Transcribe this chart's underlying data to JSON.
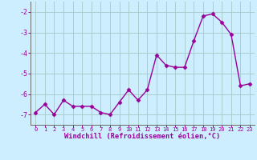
{
  "x": [
    0,
    1,
    2,
    3,
    4,
    5,
    6,
    7,
    8,
    9,
    10,
    11,
    12,
    13,
    14,
    15,
    16,
    17,
    18,
    19,
    20,
    21,
    22,
    23
  ],
  "y": [
    -6.9,
    -6.5,
    -7.0,
    -6.3,
    -6.6,
    -6.6,
    -6.6,
    -6.9,
    -7.0,
    -6.4,
    -5.8,
    -6.3,
    -5.8,
    -4.1,
    -4.6,
    -4.7,
    -4.7,
    -3.4,
    -2.2,
    -2.1,
    -2.5,
    -3.1,
    -5.6,
    -5.5
  ],
  "line_color": "#990099",
  "marker": "D",
  "marker_size": 2.5,
  "bg_color": "#cceeff",
  "grid_color": "#aacccc",
  "xlabel": "Windchill (Refroidissement éolien,°C)",
  "xlabel_color": "#990099",
  "tick_color": "#990099",
  "ylim": [
    -7.5,
    -1.5
  ],
  "xlim": [
    -0.5,
    23.5
  ],
  "yticks": [
    -7,
    -6,
    -5,
    -4,
    -3,
    -2
  ],
  "xticks": [
    0,
    1,
    2,
    3,
    4,
    5,
    6,
    7,
    8,
    9,
    10,
    11,
    12,
    13,
    14,
    15,
    16,
    17,
    18,
    19,
    20,
    21,
    22,
    23
  ],
  "spine_color": "#666666",
  "xtick_fontsize": 5.0,
  "ytick_fontsize": 6.0,
  "xlabel_fontsize": 6.2
}
